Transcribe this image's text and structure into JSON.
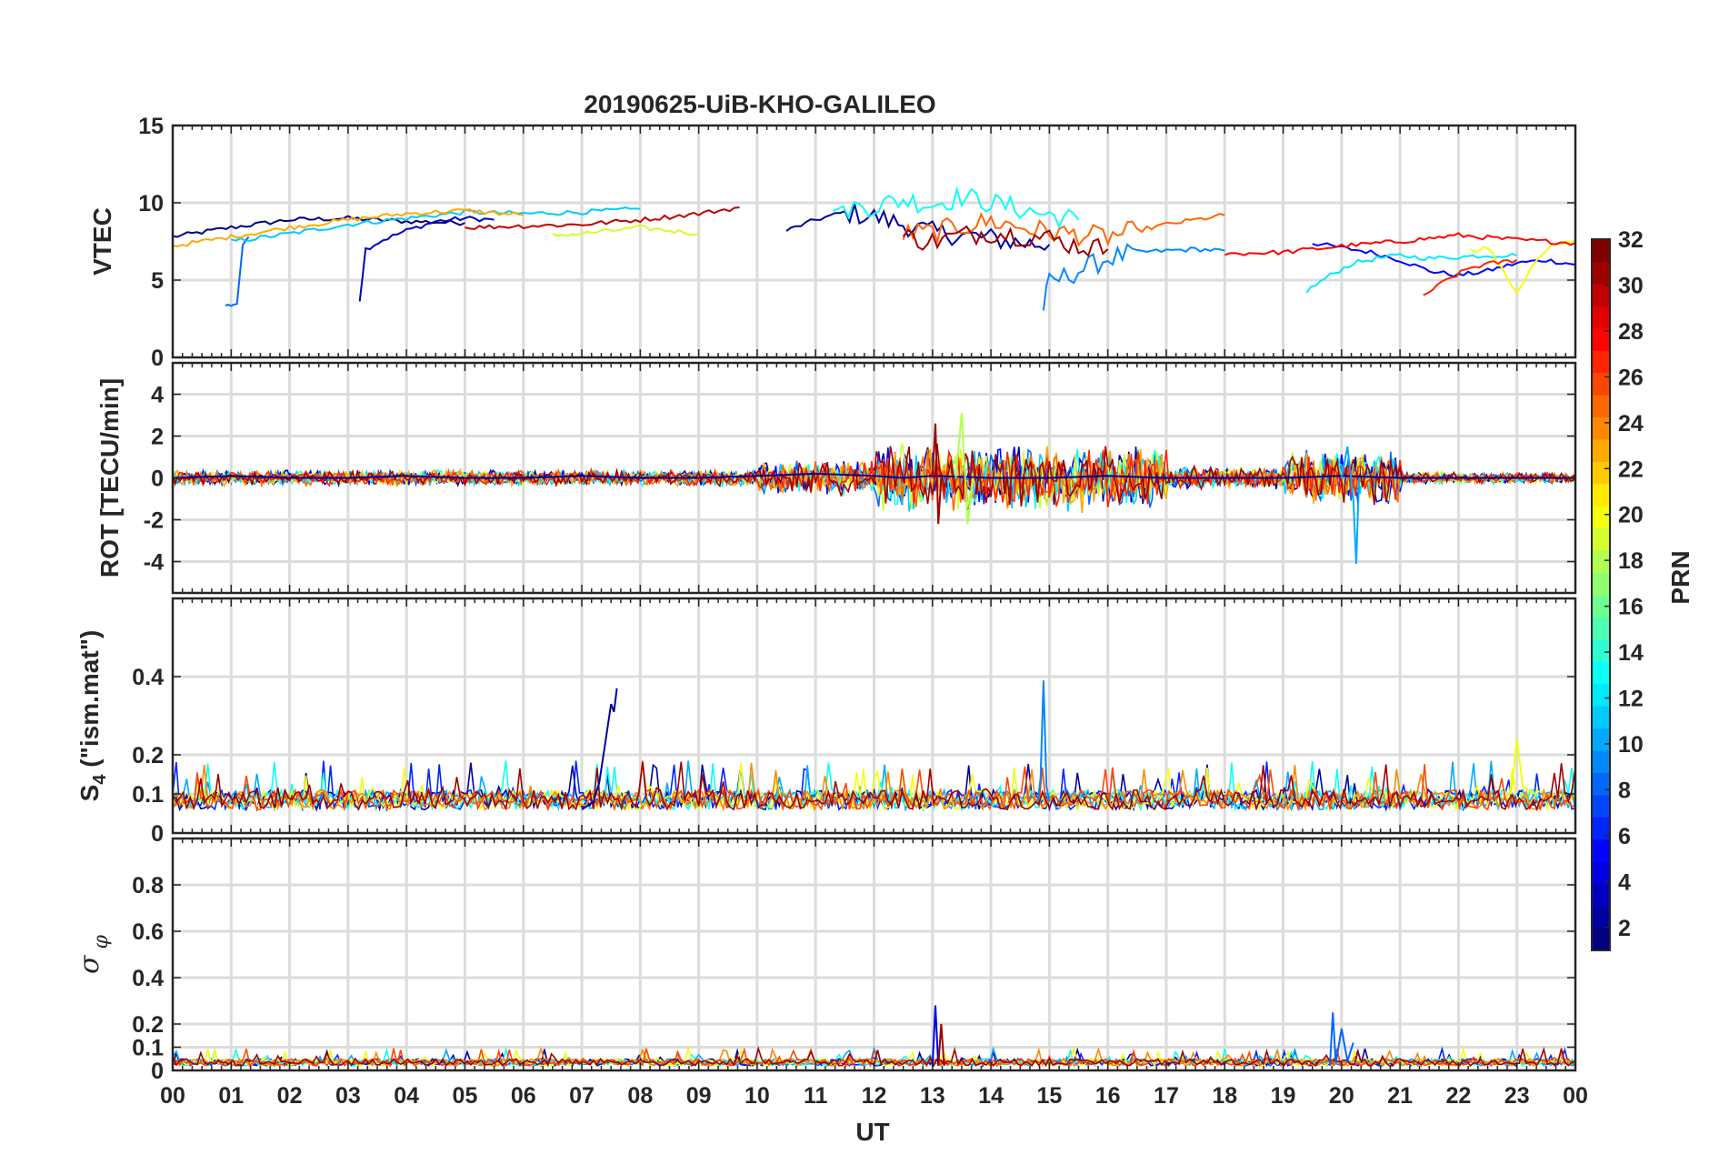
{
  "title": "20190625-UiB-KHO-GALILEO",
  "x_axis": {
    "label": "UT",
    "tick_labels": [
      "00",
      "01",
      "02",
      "03",
      "04",
      "05",
      "06",
      "07",
      "08",
      "09",
      "10",
      "11",
      "12",
      "13",
      "14",
      "15",
      "16",
      "17",
      "18",
      "19",
      "20",
      "21",
      "22",
      "23",
      "00"
    ],
    "range_hours": [
      0,
      24
    ]
  },
  "colorbar": {
    "label": "PRN",
    "range": [
      1,
      32
    ],
    "tick_labels": [
      "2",
      "4",
      "6",
      "8",
      "10",
      "12",
      "14",
      "16",
      "18",
      "20",
      "22",
      "24",
      "26",
      "28",
      "30",
      "32"
    ],
    "tick_values": [
      2,
      4,
      6,
      8,
      10,
      12,
      14,
      16,
      18,
      20,
      22,
      24,
      26,
      28,
      30,
      32
    ],
    "colormap": "jet"
  },
  "chart_data": [
    {
      "type": "line",
      "panel": "vtec",
      "ylabel": "VTEC",
      "ylim": [
        0,
        15
      ],
      "ytick_labels": [
        "0",
        "5",
        "10",
        "15"
      ],
      "ytick_values": [
        0,
        5,
        10,
        15
      ],
      "grid": true,
      "series": [
        {
          "prn": 1,
          "x": [
            0.0,
            1.0,
            2.0,
            3.0,
            4.0,
            5.0
          ],
          "y": [
            7.8,
            8.4,
            8.9,
            9.0,
            8.8,
            8.7
          ]
        },
        {
          "prn": 3,
          "x": [
            3.2,
            3.3,
            3.6,
            4.0,
            4.5,
            5.0,
            5.5
          ],
          "y": [
            3.7,
            7.0,
            7.6,
            8.2,
            8.8,
            9.0,
            8.9
          ]
        },
        {
          "prn": 2,
          "x": [
            10.5,
            11.0,
            11.5,
            12.0,
            12.5,
            13.0,
            13.5,
            14.0,
            14.5,
            15.0
          ],
          "y": [
            8.2,
            8.9,
            9.4,
            9.1,
            8.6,
            8.1,
            7.9,
            7.7,
            7.4,
            7.3
          ]
        },
        {
          "prn": 5,
          "x": [
            19.5,
            20.0,
            20.5,
            21.0,
            21.5,
            22.0,
            22.5,
            23.0,
            23.5,
            24.0
          ],
          "y": [
            7.4,
            7.1,
            6.8,
            6.3,
            5.6,
            5.3,
            5.6,
            6.1,
            6.3,
            6.0
          ]
        },
        {
          "prn": 8,
          "x": [
            0.9,
            1.0,
            1.1,
            1.2,
            1.3
          ],
          "y": [
            3.4,
            3.3,
            3.5,
            7.3,
            7.8
          ]
        },
        {
          "prn": 9,
          "x": [
            14.9,
            15.0,
            15.5,
            16.0,
            16.5,
            17.0,
            17.5,
            18.0
          ],
          "y": [
            3.3,
            4.8,
            5.6,
            6.4,
            6.8,
            6.9,
            7.0,
            6.9
          ]
        },
        {
          "prn": 11,
          "x": [
            1.0,
            2.0,
            3.0,
            4.0,
            5.0,
            6.0,
            7.0,
            8.0
          ],
          "y": [
            7.5,
            8.0,
            8.6,
            9.0,
            9.4,
            9.3,
            9.4,
            9.6
          ]
        },
        {
          "prn": 12,
          "x": [
            19.4,
            19.8,
            20.2,
            20.6,
            21.0,
            21.5,
            22.0,
            22.5,
            23.0
          ],
          "y": [
            4.3,
            5.3,
            6.1,
            6.4,
            6.6,
            6.4,
            6.5,
            6.6,
            6.6
          ]
        },
        {
          "prn": 13,
          "x": [
            11.3,
            12.0,
            12.5,
            13.0,
            13.5,
            14.0,
            14.5,
            15.0,
            15.5
          ],
          "y": [
            9.6,
            9.8,
            10.2,
            9.9,
            10.4,
            10.0,
            9.6,
            9.2,
            8.9
          ]
        },
        {
          "prn": 19,
          "x": [
            6.5,
            7.0,
            7.5,
            8.0,
            8.5,
            9.0
          ],
          "y": [
            7.9,
            8.0,
            8.2,
            8.4,
            8.2,
            8.0
          ]
        },
        {
          "prn": 20,
          "x": [
            22.2,
            22.5,
            23.0,
            23.3,
            23.6,
            24.0
          ],
          "y": [
            6.9,
            7.1,
            4.2,
            6.1,
            7.2,
            7.6
          ]
        },
        {
          "prn": 23,
          "x": [
            0.0,
            1.0,
            2.0,
            3.0,
            4.0,
            5.0,
            6.0
          ],
          "y": [
            7.2,
            7.8,
            8.4,
            8.9,
            9.3,
            9.5,
            9.2
          ]
        },
        {
          "prn": 25,
          "x": [
            12.5,
            13.0,
            13.5,
            14.0,
            15.0,
            16.0,
            17.0,
            18.0
          ],
          "y": [
            8.0,
            8.1,
            8.5,
            8.8,
            8.1,
            7.8,
            8.6,
            9.2
          ]
        },
        {
          "prn": 27,
          "x": [
            21.4,
            21.8,
            22.2,
            22.6,
            23.0
          ],
          "y": [
            4.0,
            5.0,
            5.8,
            6.1,
            6.3
          ]
        },
        {
          "prn": 28,
          "x": [
            18.0,
            19.0,
            20.0,
            21.0,
            22.0,
            23.0,
            24.0
          ],
          "y": [
            6.7,
            6.8,
            7.2,
            7.5,
            7.9,
            7.6,
            7.4
          ]
        },
        {
          "prn": 30,
          "x": [
            5.0,
            6.0,
            7.0,
            8.0,
            9.0,
            9.7
          ],
          "y": [
            8.4,
            8.5,
            8.6,
            8.9,
            9.3,
            9.7
          ]
        },
        {
          "prn": 31,
          "x": [
            12.5,
            13.0,
            13.5,
            14.0,
            14.5,
            15.0,
            15.5,
            16.0
          ],
          "y": [
            7.8,
            7.5,
            7.9,
            8.1,
            7.9,
            7.7,
            7.2,
            7.0
          ]
        }
      ]
    },
    {
      "type": "line",
      "panel": "rot",
      "ylabel": "ROT [TECU/min]",
      "ylim": [
        -5.5,
        5.5
      ],
      "ytick_labels": [
        "-4",
        "-2",
        "0",
        "2",
        "4"
      ],
      "ytick_values": [
        -4,
        -2,
        0,
        2,
        4
      ],
      "grid": true,
      "series": [
        {
          "prn": 2,
          "x": [
            0.0,
            1.0,
            2.0,
            3.0,
            4.0,
            5.0,
            6.0,
            7.0,
            8.0,
            9.0,
            10.0,
            11.0,
            12.0,
            12.5,
            13.0,
            14.0,
            15.0,
            16.0,
            17.0,
            18.0,
            19.0,
            20.0,
            21.0,
            22.0,
            23.0,
            24.0
          ],
          "y": [
            0.0,
            0.1,
            0.0,
            0.0,
            0.1,
            0.0,
            0.0,
            0.1,
            0.0,
            0.0,
            0.1,
            0.2,
            0.1,
            0.0,
            0.1,
            0.0,
            0.0,
            0.1,
            0.0,
            0.0,
            0.0,
            0.1,
            0.0,
            0.0,
            0.0,
            0.0
          ]
        },
        {
          "prn": 10,
          "x": [
            20.0,
            20.1,
            20.2,
            20.25,
            20.3
          ],
          "y": [
            0.0,
            1.5,
            -1.0,
            -4.1,
            0.0
          ]
        },
        {
          "prn": 18,
          "x": [
            13.4,
            13.5,
            13.6,
            13.7
          ],
          "y": [
            0.0,
            3.1,
            -2.2,
            0.0
          ]
        },
        {
          "prn": 31,
          "x": [
            13.0,
            13.05,
            13.1,
            13.15
          ],
          "y": [
            0.0,
            2.6,
            -2.2,
            0.0
          ]
        }
      ],
      "noise_bands": [
        {
          "x_range": [
            0,
            10
          ],
          "amplitude": 0.4
        },
        {
          "x_range": [
            10,
            12
          ],
          "amplitude": 0.9
        },
        {
          "x_range": [
            12,
            17
          ],
          "amplitude": 1.7
        },
        {
          "x_range": [
            17,
            19
          ],
          "amplitude": 0.6
        },
        {
          "x_range": [
            19,
            21
          ],
          "amplitude": 1.4
        },
        {
          "x_range": [
            21,
            24
          ],
          "amplitude": 0.3
        }
      ]
    },
    {
      "type": "line",
      "panel": "s4",
      "ylabel": "S4 (\"ism.mat\")",
      "ylabel_main": "S",
      "ylabel_sub": "4",
      "ylabel_rest": " (\"ism.mat\")",
      "ylim": [
        0,
        0.6
      ],
      "ytick_labels": [
        "0",
        "0.1",
        "0.2",
        "0.4"
      ],
      "ytick_values": [
        0,
        0.1,
        0.2,
        0.4
      ],
      "grid": true,
      "series": [
        {
          "prn": 2,
          "x": [
            7.0,
            7.2,
            7.3,
            7.4,
            7.45,
            7.5,
            7.55,
            7.6
          ],
          "y": [
            0.06,
            0.08,
            0.13,
            0.23,
            0.28,
            0.33,
            0.31,
            0.37
          ]
        },
        {
          "prn": 9,
          "x": [
            14.8,
            14.85,
            14.9,
            14.95,
            15.0
          ],
          "y": [
            0.08,
            0.14,
            0.39,
            0.12,
            0.08
          ]
        },
        {
          "prn": 20,
          "x": [
            22.9,
            23.0,
            23.1,
            23.3
          ],
          "y": [
            0.1,
            0.24,
            0.12,
            0.1
          ]
        }
      ],
      "baseline": {
        "y": 0.06,
        "noise": 0.05
      }
    },
    {
      "type": "line",
      "panel": "sigma_phi",
      "ylabel": "σφ",
      "ylabel_main": "σ",
      "ylabel_sub": "φ",
      "ylim": [
        0,
        1.0
      ],
      "ytick_labels": [
        "0",
        "0.1",
        "0.2",
        "0.4",
        "0.6",
        "0.8"
      ],
      "ytick_values": [
        0,
        0.1,
        0.2,
        0.4,
        0.6,
        0.8
      ],
      "grid": true,
      "series": [
        {
          "prn": 4,
          "x": [
            13.0,
            13.05,
            13.1
          ],
          "y": [
            0.02,
            0.28,
            0.02
          ]
        },
        {
          "prn": 31,
          "x": [
            13.1,
            13.15,
            13.2
          ],
          "y": [
            0.02,
            0.2,
            0.02
          ]
        },
        {
          "prn": 8,
          "x": [
            19.8,
            19.85,
            19.9,
            20.0,
            20.1,
            20.2
          ],
          "y": [
            0.02,
            0.25,
            0.03,
            0.18,
            0.04,
            0.12
          ]
        }
      ],
      "baseline": {
        "y": 0.02,
        "noise": 0.03
      }
    }
  ]
}
